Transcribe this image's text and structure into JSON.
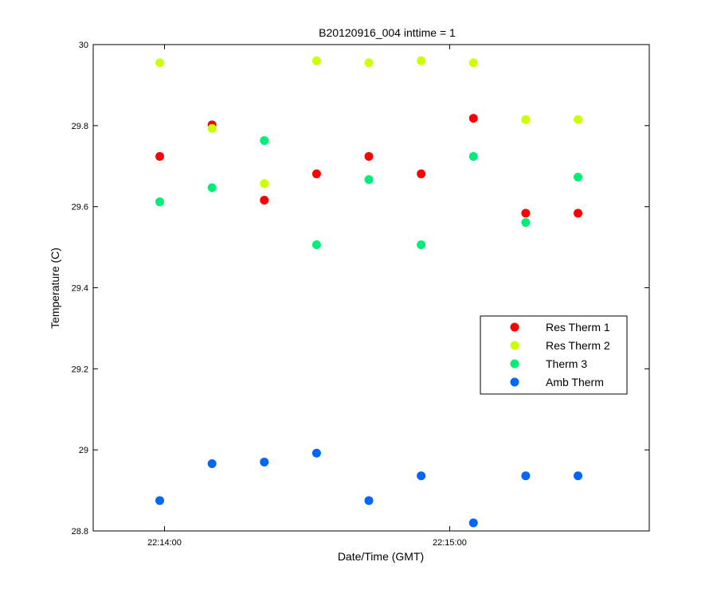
{
  "chart_data": {
    "type": "scatter",
    "title": "B20120916_004 inttime = 1",
    "xlabel": "Date/Time (GMT)",
    "ylabel": "Temperature (C)",
    "xlim": [
      "22:13:45",
      "22:15:42"
    ],
    "ylim": [
      28.8,
      30.0
    ],
    "x_ticks": [
      "22:14:00",
      "22:15:00"
    ],
    "y_ticks": [
      "28.8",
      "29",
      "29.2",
      "29.4",
      "29.6",
      "29.8",
      "30"
    ],
    "grid": false,
    "legend_position": "right",
    "x": [
      "22:13:59",
      "22:14:10",
      "22:14:21",
      "22:14:32",
      "22:14:43",
      "22:14:54",
      "22:15:05",
      "22:15:16",
      "22:15:27"
    ],
    "series": [
      {
        "name": "Res Therm 1",
        "color": "#ff0000",
        "values": [
          29.724,
          29.802,
          29.616,
          29.681,
          29.724,
          29.681,
          29.818,
          29.584,
          29.584
        ]
      },
      {
        "name": "Res Therm 2",
        "color": "#ccff00",
        "values": [
          29.955,
          29.793,
          29.657,
          29.96,
          29.955,
          29.96,
          29.955,
          29.815,
          29.815
        ]
      },
      {
        "name": "Therm 3",
        "color": "#00ee77",
        "values": [
          29.612,
          29.647,
          29.763,
          29.506,
          29.667,
          29.506,
          29.724,
          29.561,
          29.673
        ]
      },
      {
        "name": "Amb Therm",
        "color": "#0066ff",
        "values": [
          28.875,
          28.966,
          28.97,
          28.992,
          28.875,
          28.936,
          28.82,
          28.936,
          28.936
        ]
      }
    ]
  }
}
